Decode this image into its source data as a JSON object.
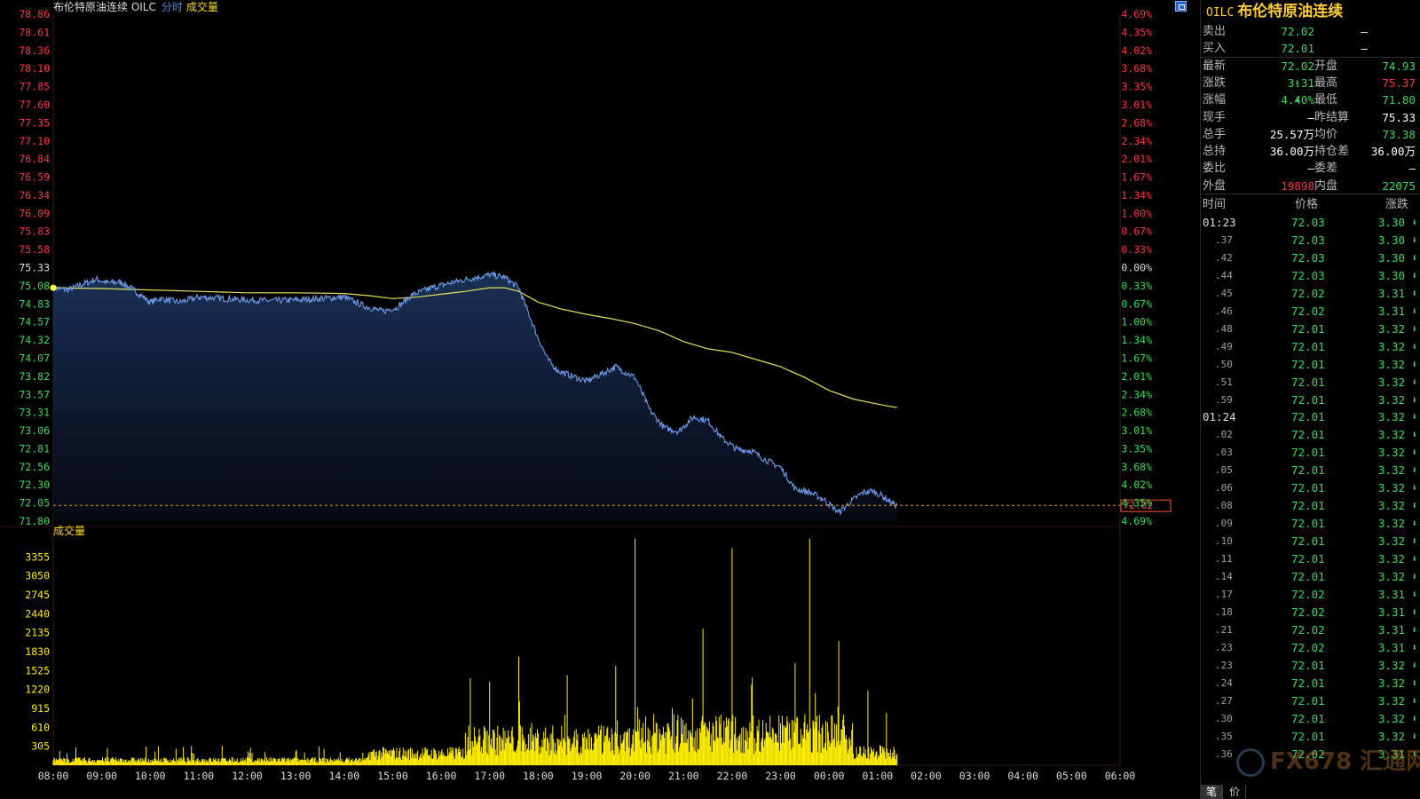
{
  "header": {
    "instrument": "布伦特原油连续 OILC",
    "mode": "分时",
    "volume_toggle": "成交量"
  },
  "volume_label": "成交量",
  "current_price_tag": "72.02",
  "chart_data": {
    "type": "line",
    "price_axis_labels": [
      "78.86",
      "78.61",
      "78.36",
      "78.10",
      "77.85",
      "77.60",
      "77.35",
      "77.10",
      "76.84",
      "76.59",
      "76.34",
      "76.09",
      "75.83",
      "75.58",
      "75.33",
      "75.08",
      "74.83",
      "74.57",
      "74.32",
      "74.07",
      "73.82",
      "73.57",
      "73.31",
      "73.06",
      "72.81",
      "72.56",
      "72.30",
      "72.05",
      "71.80"
    ],
    "percent_axis_labels": [
      "4.69%",
      "4.35%",
      "4.02%",
      "3.68%",
      "3.35%",
      "3.01%",
      "2.68%",
      "2.34%",
      "2.01%",
      "1.67%",
      "1.34%",
      "1.00%",
      "0.67%",
      "0.33%",
      "0.00%",
      "0.33%",
      "0.67%",
      "1.00%",
      "1.34%",
      "1.67%",
      "2.01%",
      "2.34%",
      "2.68%",
      "3.01%",
      "3.35%",
      "3.68%",
      "4.02%",
      "4.35%",
      "4.69%"
    ],
    "reference_price": 75.33,
    "y_range": [
      71.8,
      78.86
    ],
    "volume_axis_labels": [
      "3355",
      "3050",
      "2745",
      "2440",
      "2135",
      "1830",
      "1525",
      "1220",
      "915",
      "610",
      "305"
    ],
    "volume_range": [
      0,
      3660
    ],
    "time_labels": [
      "08:00",
      "09:00",
      "10:00",
      "11:00",
      "12:00",
      "13:00",
      "14:00",
      "15:00",
      "16:00",
      "17:00",
      "18:00",
      "19:00",
      "20:00",
      "21:00",
      "22:00",
      "23:00",
      "00:00",
      "01:00",
      "02:00",
      "03:00",
      "04:00",
      "05:00",
      "06:00"
    ],
    "price_series_keypoints": {
      "name": "",
      "hours": [
        0,
        0.3,
        0.6,
        0.9,
        1.1,
        1.4,
        1.7,
        2.0,
        2.2,
        2.6,
        3.0,
        3.5,
        4.0,
        4.5,
        5.0,
        5.5,
        6.0,
        6.4,
        6.8,
        7.1,
        7.4,
        7.8,
        8.2,
        8.6,
        9.0,
        9.3,
        9.6,
        9.8,
        10.0,
        10.2,
        10.4,
        10.7,
        11.0,
        11.3,
        11.6,
        12.0,
        12.3,
        12.6,
        12.9,
        13.2,
        13.5,
        13.8,
        14.1,
        14.4,
        14.7,
        15.0,
        15.3,
        15.6,
        15.9,
        16.2,
        16.5,
        16.7,
        16.9,
        17.1,
        17.3,
        17.4
      ],
      "prices": [
        75.05,
        75.02,
        75.1,
        75.17,
        75.12,
        75.13,
        75.0,
        74.85,
        74.9,
        74.85,
        74.92,
        74.9,
        74.88,
        74.87,
        74.88,
        74.9,
        74.92,
        74.8,
        74.72,
        74.78,
        74.95,
        75.05,
        75.12,
        75.18,
        75.23,
        75.2,
        75.05,
        74.7,
        74.35,
        74.05,
        73.9,
        73.82,
        73.75,
        73.85,
        73.95,
        73.8,
        73.35,
        73.1,
        73.05,
        73.25,
        73.2,
        72.95,
        72.8,
        72.78,
        72.65,
        72.55,
        72.25,
        72.2,
        72.1,
        71.92,
        72.1,
        72.2,
        72.22,
        72.15,
        72.05,
        72.02
      ]
    },
    "average_series_keypoints": {
      "name": "",
      "hours": [
        0,
        1,
        2,
        3,
        4,
        5,
        6,
        6.5,
        7.0,
        7.5,
        8.0,
        8.5,
        9.0,
        9.3,
        9.6,
        10.0,
        10.5,
        11,
        11.5,
        12,
        12.5,
        13,
        13.5,
        14,
        14.5,
        15,
        15.5,
        16,
        16.5,
        17,
        17.4
      ],
      "prices": [
        75.05,
        75.04,
        75.02,
        75.0,
        74.98,
        74.98,
        74.97,
        74.94,
        74.9,
        74.92,
        74.96,
        75.0,
        75.05,
        75.05,
        75.0,
        74.85,
        74.75,
        74.68,
        74.62,
        74.55,
        74.45,
        74.3,
        74.2,
        74.15,
        74.05,
        73.95,
        73.8,
        73.62,
        73.5,
        73.43,
        73.38
      ]
    }
  },
  "quote_panel": {
    "title_code": "OILC",
    "title_name": "布伦特原油连续",
    "rows": [
      {
        "l1": "卖出",
        "v1": "72.02",
        "v1c": "g",
        "l2": "",
        "v2": "—",
        "v2c": "w"
      },
      {
        "l1": "买入",
        "v1": "72.01",
        "v1c": "g",
        "l2": "",
        "v2": "—",
        "v2c": "w"
      },
      {
        "l1": "最新",
        "v1": "72.02",
        "v1c": "g",
        "l2": "开盘",
        "v2": "74.93",
        "v2c": "g"
      },
      {
        "l1": "涨跌",
        "v1": "3.31",
        "v1c": "g",
        "v1arrow": true,
        "l2": "最高",
        "v2": "75.37",
        "v2c": "r"
      },
      {
        "l1": "涨幅",
        "v1": "4.40%",
        "v1c": "g",
        "v1arrow": true,
        "l2": "最低",
        "v2": "71.80",
        "v2c": "g"
      },
      {
        "l1": "现手",
        "v1": "—",
        "v1c": "w",
        "l2": "昨结算",
        "v2": "75.33",
        "v2c": "w"
      },
      {
        "l1": "总手",
        "v1": "25.57万",
        "v1c": "w",
        "l2": "均价",
        "v2": "73.38",
        "v2c": "g"
      },
      {
        "l1": "总持",
        "v1": "36.00万",
        "v1c": "w",
        "l2": "持仓差",
        "v2": "36.00万",
        "v2c": "w"
      },
      {
        "l1": "委比",
        "v1": "—",
        "v1c": "w",
        "l2": "委差",
        "v2": "—",
        "v2c": "w"
      },
      {
        "l1": "外盘",
        "v1": "19898",
        "v1c": "r",
        "l2": "内盘",
        "v2": "22075",
        "v2c": "g"
      }
    ],
    "ticks_header": {
      "time": "时间",
      "price": "价格",
      "change": "涨跌"
    },
    "ticks": [
      {
        "t": "01:23",
        "full": true,
        "p": "72.03",
        "c": "3.30"
      },
      {
        "t": ".37",
        "p": "72.03",
        "c": "3.30"
      },
      {
        "t": ".42",
        "p": "72.03",
        "c": "3.30"
      },
      {
        "t": ".44",
        "p": "72.03",
        "c": "3.30"
      },
      {
        "t": ".45",
        "p": "72.02",
        "c": "3.31"
      },
      {
        "t": ".46",
        "p": "72.02",
        "c": "3.31"
      },
      {
        "t": ".48",
        "p": "72.01",
        "c": "3.32"
      },
      {
        "t": ".49",
        "p": "72.01",
        "c": "3.32"
      },
      {
        "t": ".50",
        "p": "72.01",
        "c": "3.32"
      },
      {
        "t": ".51",
        "p": "72.01",
        "c": "3.32"
      },
      {
        "t": ".59",
        "p": "72.01",
        "c": "3.32"
      },
      {
        "t": "01:24",
        "full": true,
        "p": "72.01",
        "c": "3.32"
      },
      {
        "t": ".02",
        "p": "72.01",
        "c": "3.32"
      },
      {
        "t": ".03",
        "p": "72.01",
        "c": "3.32"
      },
      {
        "t": ".05",
        "p": "72.01",
        "c": "3.32"
      },
      {
        "t": ".06",
        "p": "72.01",
        "c": "3.32"
      },
      {
        "t": ".08",
        "p": "72.01",
        "c": "3.32"
      },
      {
        "t": ".09",
        "p": "72.01",
        "c": "3.32"
      },
      {
        "t": ".10",
        "p": "72.01",
        "c": "3.32"
      },
      {
        "t": ".11",
        "p": "72.01",
        "c": "3.32"
      },
      {
        "t": ".14",
        "p": "72.01",
        "c": "3.32"
      },
      {
        "t": ".17",
        "p": "72.02",
        "c": "3.31"
      },
      {
        "t": ".18",
        "p": "72.02",
        "c": "3.31"
      },
      {
        "t": ".21",
        "p": "72.02",
        "c": "3.31"
      },
      {
        "t": ".23",
        "p": "72.02",
        "c": "3.31"
      },
      {
        "t": ".23",
        "p": "72.01",
        "c": "3.32"
      },
      {
        "t": ".24",
        "p": "72.01",
        "c": "3.32"
      },
      {
        "t": ".27",
        "p": "72.01",
        "c": "3.32"
      },
      {
        "t": ".30",
        "p": "72.01",
        "c": "3.32"
      },
      {
        "t": ".35",
        "p": "72.01",
        "c": "3.32"
      },
      {
        "t": ".36",
        "p": "72.02",
        "c": "3.31"
      }
    ],
    "bottom_tabs": [
      "笔",
      "价"
    ]
  },
  "watermark_text": "FX678 汇通网",
  "colors": {
    "price_line": "#6f9be8",
    "avg_line": "#e6e05a",
    "volume": "#ffee00",
    "up": "#ff3344",
    "down": "#33dd55"
  }
}
